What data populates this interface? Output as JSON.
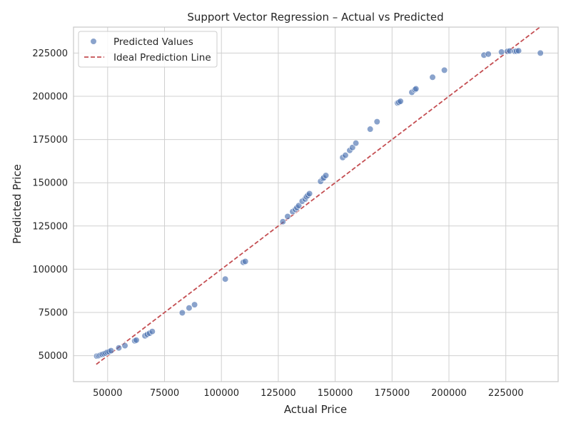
{
  "chart_data": {
    "type": "scatter",
    "title": "Support Vector Regression – Actual vs Predicted",
    "xlabel": "Actual Price",
    "ylabel": "Predicted Price",
    "xlim": [
      35000,
      248000
    ],
    "ylim": [
      35000,
      240000
    ],
    "xticks": [
      50000,
      75000,
      100000,
      125000,
      150000,
      175000,
      200000,
      225000
    ],
    "yticks": [
      50000,
      75000,
      100000,
      125000,
      150000,
      175000,
      200000,
      225000
    ],
    "grid": true,
    "legend_position": "top-left",
    "colors": {
      "points": "#4c72b0",
      "ideal_line": "#c44e52",
      "grid": "#d0d0d0",
      "axes_edge": "#c8c8c8"
    },
    "series": [
      {
        "name": "Predicted Values",
        "kind": "scatter",
        "points": [
          [
            45200,
            49800
          ],
          [
            46000,
            50000
          ],
          [
            46600,
            50300
          ],
          [
            47200,
            50600
          ],
          [
            47700,
            50800
          ],
          [
            48400,
            51100
          ],
          [
            49100,
            51500
          ],
          [
            49800,
            52000
          ],
          [
            50600,
            52300
          ],
          [
            51500,
            52900
          ],
          [
            54900,
            54500
          ],
          [
            57600,
            55800
          ],
          [
            61900,
            58600
          ],
          [
            62600,
            59000
          ],
          [
            66400,
            61500
          ],
          [
            67400,
            62300
          ],
          [
            68400,
            63000
          ],
          [
            69600,
            64000
          ],
          [
            82800,
            74800
          ],
          [
            85800,
            77600
          ],
          [
            88200,
            79500
          ],
          [
            101700,
            94300
          ],
          [
            109600,
            104000
          ],
          [
            110500,
            104500
          ],
          [
            127000,
            127500
          ],
          [
            129100,
            130500
          ],
          [
            131300,
            133300
          ],
          [
            132500,
            134600
          ],
          [
            133200,
            135600
          ],
          [
            134000,
            136800
          ],
          [
            135500,
            139300
          ],
          [
            136800,
            140600
          ],
          [
            137400,
            141900
          ],
          [
            138000,
            142700
          ],
          [
            138700,
            143700
          ],
          [
            143600,
            150800
          ],
          [
            144600,
            152400
          ],
          [
            145000,
            152900
          ],
          [
            145900,
            154200
          ],
          [
            153300,
            164600
          ],
          [
            154500,
            165900
          ],
          [
            156400,
            168700
          ],
          [
            157600,
            170400
          ],
          [
            159100,
            172900
          ],
          [
            165400,
            181000
          ],
          [
            168400,
            185300
          ],
          [
            177400,
            196100
          ],
          [
            178000,
            196500
          ],
          [
            178700,
            197100
          ],
          [
            183700,
            202300
          ],
          [
            185000,
            203800
          ],
          [
            185500,
            204300
          ],
          [
            192800,
            211000
          ],
          [
            198000,
            215100
          ],
          [
            215400,
            223800
          ],
          [
            217300,
            224400
          ],
          [
            223100,
            225600
          ],
          [
            225700,
            226000
          ],
          [
            226700,
            226200
          ],
          [
            228900,
            226000
          ],
          [
            229700,
            226100
          ],
          [
            230600,
            226300
          ],
          [
            240200,
            225000
          ]
        ]
      },
      {
        "name": "Ideal Prediction Line",
        "kind": "line",
        "style": "dashed",
        "points": [
          [
            45000,
            45000
          ],
          [
            240000,
            240000
          ]
        ]
      }
    ]
  }
}
